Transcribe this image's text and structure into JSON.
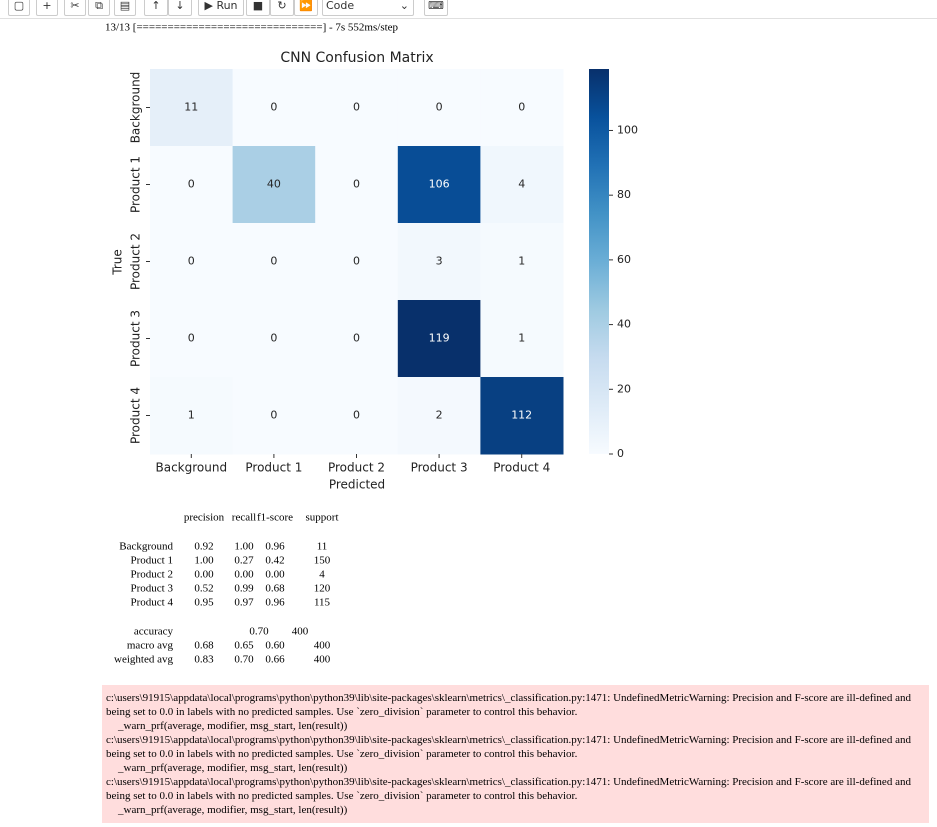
{
  "toolbar": {
    "run": "Run",
    "cell_type": "Code"
  },
  "progress": "13/13 [==============================] - 7s 552ms/step",
  "chart_data": {
    "type": "heatmap",
    "title": "CNN Confusion Matrix",
    "x_label": "Predicted",
    "y_label": "True",
    "categories": [
      "Background",
      "Product 1",
      "Product 2",
      "Product 3",
      "Product 4"
    ],
    "values": [
      [
        11,
        0,
        0,
        0,
        0
      ],
      [
        0,
        40,
        0,
        106,
        4
      ],
      [
        0,
        0,
        0,
        3,
        1
      ],
      [
        0,
        0,
        0,
        119,
        1
      ],
      [
        1,
        0,
        0,
        2,
        112
      ]
    ],
    "clim": [
      0,
      119
    ],
    "cticks": [
      0,
      20,
      40,
      60,
      80,
      100
    ],
    "colormap": [
      "#f7fbff",
      "#deebf7",
      "#c6dbef",
      "#9ecae1",
      "#6baed6",
      "#4292c6",
      "#2171b5",
      "#08519c",
      "#08306b"
    ]
  },
  "report": {
    "header": [
      "precision",
      "recall",
      "f1-score",
      "support"
    ],
    "rows": [
      [
        "Background",
        "0.92",
        "1.00",
        "0.96",
        "11"
      ],
      [
        "Product 1",
        "1.00",
        "0.27",
        "0.42",
        "150"
      ],
      [
        "Product 2",
        "0.00",
        "0.00",
        "0.00",
        "4"
      ],
      [
        "Product 3",
        "0.52",
        "0.99",
        "0.68",
        "120"
      ],
      [
        "Product 4",
        "0.95",
        "0.97",
        "0.96",
        "115"
      ]
    ],
    "accuracy": [
      "accuracy",
      "0.70",
      "400"
    ],
    "averages": [
      [
        "macro avg",
        "0.68",
        "0.65",
        "0.60",
        "400"
      ],
      [
        "weighted avg",
        "0.83",
        "0.70",
        "0.66",
        "400"
      ]
    ]
  },
  "warnings": [
    {
      "message": "c:\\users\\91915\\appdata\\local\\programs\\python\\python39\\lib\\site-packages\\sklearn\\metrics\\_classification.py:1471: UndefinedMetricWarning: Precision and F-score are ill-defined and being set to 0.0 in labels with no predicted samples. Use `zero_division` parameter to control this behavior.",
      "source": "_warn_prf(average, modifier, msg_start, len(result))"
    },
    {
      "message": "c:\\users\\91915\\appdata\\local\\programs\\python\\python39\\lib\\site-packages\\sklearn\\metrics\\_classification.py:1471: UndefinedMetricWarning: Precision and F-score are ill-defined and being set to 0.0 in labels with no predicted samples. Use `zero_division` parameter to control this behavior.",
      "source": "_warn_prf(average, modifier, msg_start, len(result))"
    },
    {
      "message": "c:\\users\\91915\\appdata\\local\\programs\\python\\python39\\lib\\site-packages\\sklearn\\metrics\\_classification.py:1471: UndefinedMetricWarning: Precision and F-score are ill-defined and being set to 0.0 in labels with no predicted samples. Use `zero_division` parameter to control this behavior.",
      "source": "_warn_prf(average, modifier, msg_start, len(result))"
    }
  ]
}
